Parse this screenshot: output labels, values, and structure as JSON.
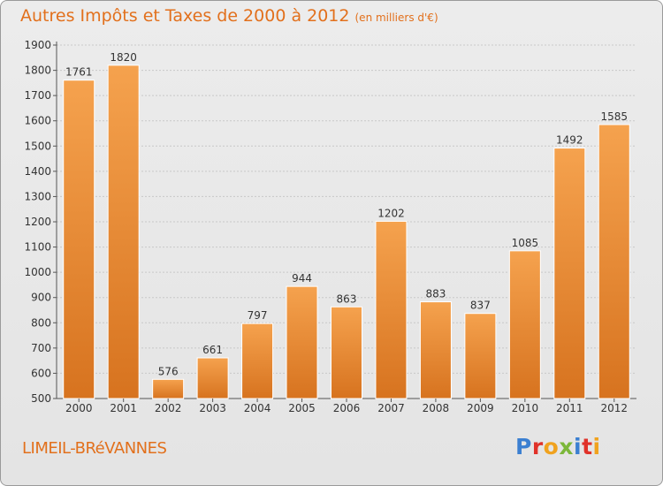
{
  "header": {
    "title": "Autres Impôts et Taxes de 2000 à 2012",
    "subtitle": "(en milliers d'€)"
  },
  "footer": {
    "commune": "LIMEIL-BRéVANNES",
    "logo_letters": [
      "P",
      "r",
      "o",
      "x",
      "i",
      "t",
      "i"
    ]
  },
  "colors": {
    "bar_top": "#f5a24e",
    "bar_bottom": "#d7731f",
    "accent": "#e2701c"
  },
  "chart_data": {
    "type": "bar",
    "categories": [
      "2000",
      "2001",
      "2002",
      "2003",
      "2004",
      "2005",
      "2006",
      "2007",
      "2008",
      "2009",
      "2010",
      "2011",
      "2012"
    ],
    "values": [
      1761,
      1820,
      576,
      661,
      797,
      944,
      863,
      1202,
      883,
      837,
      1085,
      1492,
      1585
    ],
    "ylim": [
      500,
      1900
    ],
    "yticks": [
      500,
      600,
      700,
      800,
      900,
      1000,
      1100,
      1200,
      1300,
      1400,
      1500,
      1600,
      1700,
      1800,
      1900
    ],
    "grid": true
  }
}
